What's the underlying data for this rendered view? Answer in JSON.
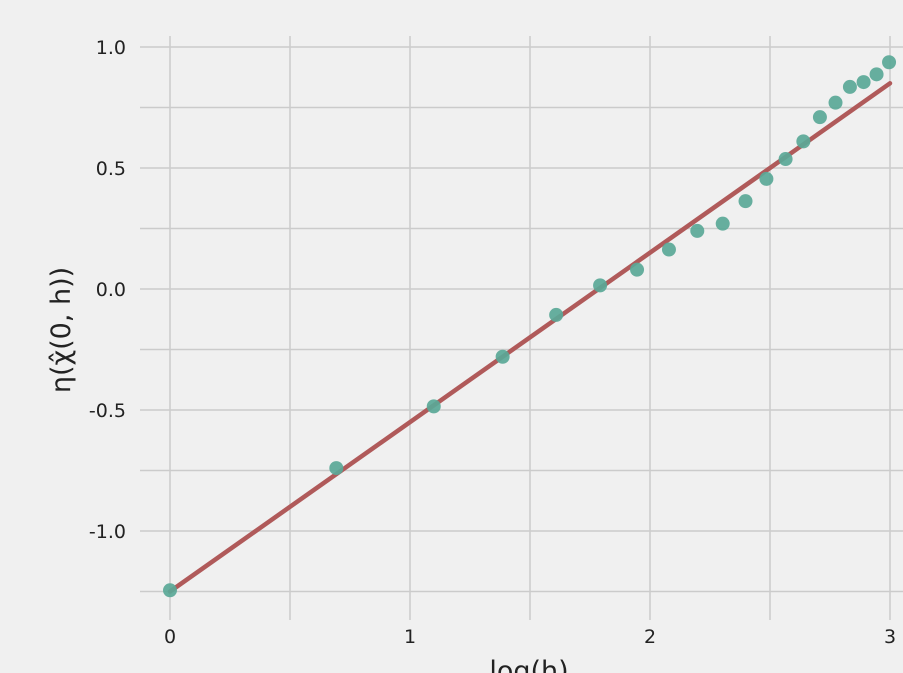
{
  "chart_data": {
    "type": "scatter",
    "title": "",
    "xlabel": "log(h)",
    "ylabel": "η(χ̂(0, h))",
    "xlim": [
      0,
      3
    ],
    "ylim": [
      -1.25,
      1.0
    ],
    "x_ticks": [
      0,
      1,
      2,
      3
    ],
    "y_ticks": [
      1.0,
      0.5,
      0.0,
      -0.5,
      -1.0
    ],
    "x_tick_labels": [
      "0",
      "1",
      "2",
      "3"
    ],
    "y_tick_labels": [
      "1.0",
      "0.5",
      "0.0",
      "-0.5",
      "-1.0"
    ],
    "grid": true,
    "series": [
      {
        "type": "scatter",
        "color": "#5aa897",
        "x": [
          0.0,
          0.693,
          1.099,
          1.386,
          1.609,
          1.792,
          1.946,
          2.079,
          2.197,
          2.303,
          2.398,
          2.485,
          2.565,
          2.639,
          2.708,
          2.773,
          2.833,
          2.89,
          2.944,
          2.996
        ],
        "y": [
          -1.245,
          -0.74,
          -0.485,
          -0.28,
          -0.107,
          0.015,
          0.08,
          0.163,
          0.24,
          0.27,
          0.363,
          0.455,
          0.537,
          0.61,
          0.71,
          0.77,
          0.835,
          0.855,
          0.887,
          0.937
        ]
      },
      {
        "type": "line",
        "color": "#b05a5a",
        "x": [
          0.0,
          3.0
        ],
        "y": [
          -1.25,
          0.85
        ]
      }
    ]
  }
}
